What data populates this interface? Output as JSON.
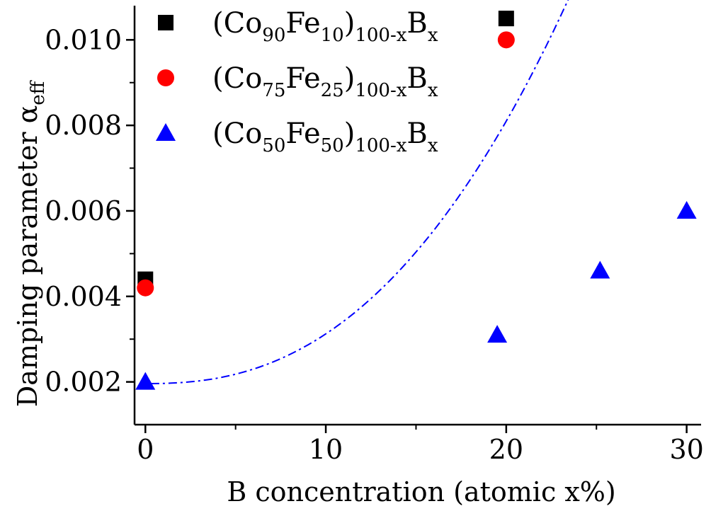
{
  "chart_data": {
    "type": "scatter",
    "xlabel_main": "B concentration (atomic x%)",
    "ylabel_main": "Damping parameter α",
    "ylabel_sub": "eff",
    "xlim": [
      -0.6,
      30.8
    ],
    "ylim": [
      0.001,
      0.0108
    ],
    "x_ticks": [
      0,
      10,
      20,
      30
    ],
    "x_tick_labels": [
      "0",
      "10",
      "20",
      "30"
    ],
    "y_ticks": [
      0.002,
      0.004,
      0.006,
      0.008,
      0.01
    ],
    "y_tick_labels": [
      "0.002",
      "0.004",
      "0.006",
      "0.008",
      "0.010"
    ],
    "series": [
      {
        "marker": "square",
        "color": "#000000",
        "label_parts": [
          [
            "(Co",
            ""
          ],
          [
            "90",
            "sub"
          ],
          [
            "Fe",
            ""
          ],
          [
            "10",
            "sub"
          ],
          [
            ")",
            ""
          ],
          [
            "100-x",
            "sub"
          ],
          [
            "B",
            ""
          ],
          [
            "x",
            "sub"
          ]
        ],
        "x": [
          0,
          20
        ],
        "y": [
          0.0044,
          0.0105
        ]
      },
      {
        "marker": "circle",
        "color": "#ff0000",
        "label_parts": [
          [
            "(Co",
            ""
          ],
          [
            "75",
            "sub"
          ],
          [
            "Fe",
            ""
          ],
          [
            "25",
            "sub"
          ],
          [
            ")",
            ""
          ],
          [
            "100-x",
            "sub"
          ],
          [
            "B",
            ""
          ],
          [
            "x",
            "sub"
          ]
        ],
        "x": [
          0,
          20
        ],
        "y": [
          0.0042,
          0.01
        ]
      },
      {
        "marker": "triangle",
        "color": "#0000ff",
        "label_parts": [
          [
            "(Co",
            ""
          ],
          [
            "50",
            "sub"
          ],
          [
            "Fe",
            ""
          ],
          [
            "50",
            "sub"
          ],
          [
            ")",
            ""
          ],
          [
            "100-x",
            "sub"
          ],
          [
            "B",
            ""
          ],
          [
            "x",
            "sub"
          ]
        ],
        "x": [
          0,
          19.5,
          25.2,
          30
        ],
        "y": [
          0.002,
          0.0031,
          0.0046,
          0.006
        ]
      }
    ],
    "fit_curve": {
      "color": "#0000ff",
      "style": "dash-dot",
      "x_range": [
        0.3,
        30.5
      ],
      "a": 0.00196,
      "b": 4.63e-06,
      "p": 2.4
    },
    "legend_placement": "top-left"
  }
}
